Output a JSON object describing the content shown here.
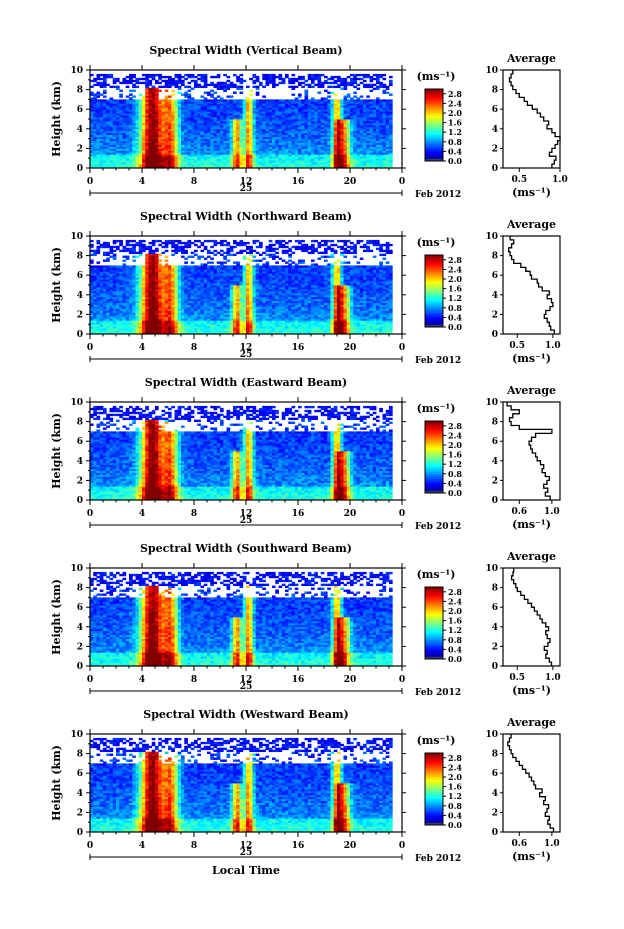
{
  "chart_data": [
    {
      "type": "heatmap",
      "title": "Spectral Width (Vertical Beam)",
      "ylabel": "Height (km)",
      "xlim": [
        0,
        24
      ],
      "ylim": [
        0,
        10
      ],
      "x_ticks": [
        "0",
        "4",
        "8",
        "12",
        "16",
        "20",
        "0"
      ],
      "y_ticks": [
        "0",
        "2",
        "4",
        "6",
        "8",
        "10"
      ],
      "date_label": "25",
      "month_label": "Feb 2012",
      "colorbar": {
        "unit": "(ms⁻¹)",
        "ticks": [
          "0.0",
          "0.4",
          "0.8",
          "1.2",
          "1.6",
          "2.0",
          "2.4",
          "2.8"
        ],
        "range": [
          0,
          3.0
        ]
      },
      "profile": {
        "title": "Average",
        "xlabel": "(ms⁻¹)",
        "xlim": [
          0.3,
          1.0
        ],
        "x_ticks": [
          "0.5",
          "1.0"
        ],
        "y_ticks": [
          "0",
          "2",
          "4",
          "6",
          "8",
          "10"
        ],
        "height": [
          0.2,
          0.6,
          1.0,
          1.4,
          1.8,
          2.2,
          2.6,
          3.0,
          3.4,
          3.8,
          4.2,
          4.6,
          5.0,
          5.4,
          5.8,
          6.2,
          6.6,
          7.0,
          7.4,
          7.8,
          8.2,
          8.6,
          9.0,
          9.4,
          9.8
        ],
        "values": [
          0.9,
          0.93,
          0.95,
          0.87,
          0.9,
          0.94,
          0.97,
          1.0,
          0.94,
          0.9,
          0.84,
          0.86,
          0.8,
          0.76,
          0.72,
          0.66,
          0.6,
          0.56,
          0.5,
          0.46,
          0.42,
          0.4,
          0.38,
          0.4,
          0.42
        ]
      }
    },
    {
      "type": "heatmap",
      "title": "Spectral Width (Northward Beam)",
      "ylabel": "Height (km)",
      "xlim": [
        0,
        24
      ],
      "ylim": [
        0,
        10
      ],
      "x_ticks": [
        "0",
        "4",
        "8",
        "12",
        "16",
        "20",
        "0"
      ],
      "y_ticks": [
        "0",
        "2",
        "4",
        "6",
        "8",
        "10"
      ],
      "date_label": "25",
      "month_label": "Feb 2012",
      "colorbar": {
        "unit": "(ms⁻¹)",
        "ticks": [
          "0.0",
          "0.4",
          "0.8",
          "1.2",
          "1.6",
          "2.0",
          "2.4",
          "2.8"
        ],
        "range": [
          0,
          3.0
        ]
      },
      "profile": {
        "title": "Average",
        "xlabel": "(ms⁻¹)",
        "xlim": [
          0.3,
          1.1
        ],
        "x_ticks": [
          "0.5",
          "1.0"
        ],
        "y_ticks": [
          "0",
          "2",
          "4",
          "6",
          "8",
          "10"
        ],
        "height": [
          0.2,
          0.6,
          1.0,
          1.4,
          1.8,
          2.2,
          2.6,
          3.0,
          3.4,
          3.8,
          4.2,
          4.6,
          5.0,
          5.4,
          5.8,
          6.2,
          6.6,
          7.0,
          7.4,
          7.8,
          8.2,
          8.6,
          9.0,
          9.4,
          9.8
        ],
        "values": [
          1.02,
          0.97,
          0.95,
          0.92,
          0.88,
          0.9,
          0.96,
          1.0,
          0.98,
          0.92,
          0.95,
          0.85,
          0.8,
          0.78,
          0.7,
          0.68,
          0.62,
          0.55,
          0.45,
          0.42,
          0.4,
          0.38,
          0.42,
          0.45,
          0.4
        ]
      }
    },
    {
      "type": "heatmap",
      "title": "Spectral Width (Eastward Beam)",
      "ylabel": "Height (km)",
      "xlim": [
        0,
        24
      ],
      "ylim": [
        0,
        10
      ],
      "x_ticks": [
        "0",
        "4",
        "8",
        "12",
        "16",
        "20",
        "0"
      ],
      "y_ticks": [
        "0",
        "2",
        "4",
        "6",
        "8",
        "10"
      ],
      "date_label": "25",
      "month_label": "Feb 2012",
      "colorbar": {
        "unit": "(ms⁻¹)",
        "ticks": [
          "0.0",
          "0.4",
          "0.8",
          "1.2",
          "1.6",
          "2.0",
          "2.4",
          "2.8"
        ],
        "range": [
          0,
          3.0
        ]
      },
      "profile": {
        "title": "Average",
        "xlabel": "(ms⁻¹)",
        "xlim": [
          0.4,
          1.1
        ],
        "x_ticks": [
          "0.6",
          "1.0"
        ],
        "y_ticks": [
          "0",
          "2",
          "4",
          "6",
          "8",
          "10"
        ],
        "height": [
          0.2,
          0.6,
          1.0,
          1.4,
          1.8,
          2.2,
          2.6,
          3.0,
          3.4,
          3.8,
          4.2,
          4.6,
          5.0,
          5.4,
          5.8,
          6.2,
          6.6,
          7.0,
          7.4,
          7.8,
          8.2,
          8.6,
          9.0,
          9.4,
          9.8
        ],
        "values": [
          0.98,
          0.92,
          0.95,
          0.9,
          0.94,
          0.97,
          0.92,
          0.88,
          0.9,
          0.86,
          0.82,
          0.8,
          0.76,
          0.74,
          0.72,
          0.75,
          0.8,
          1.0,
          0.6,
          0.5,
          0.48,
          0.52,
          0.6,
          0.5,
          0.45
        ]
      }
    },
    {
      "type": "heatmap",
      "title": "Spectral Width (Southward Beam)",
      "ylabel": "Height (km)",
      "xlim": [
        0,
        24
      ],
      "ylim": [
        0,
        10
      ],
      "x_ticks": [
        "0",
        "4",
        "8",
        "12",
        "16",
        "20",
        "0"
      ],
      "y_ticks": [
        "0",
        "2",
        "4",
        "6",
        "8",
        "10"
      ],
      "date_label": "25",
      "month_label": "Feb 2012",
      "colorbar": {
        "unit": "(ms⁻¹)",
        "ticks": [
          "0.0",
          "0.4",
          "0.8",
          "1.2",
          "1.6",
          "2.0",
          "2.4",
          "2.8"
        ],
        "range": [
          0,
          3.0
        ]
      },
      "profile": {
        "title": "Average",
        "xlabel": "(ms⁻¹)",
        "xlim": [
          0.3,
          1.1
        ],
        "x_ticks": [
          "0.5",
          "1.0"
        ],
        "y_ticks": [
          "0",
          "2",
          "4",
          "6",
          "8",
          "10"
        ],
        "height": [
          0.2,
          0.6,
          1.0,
          1.4,
          1.8,
          2.2,
          2.6,
          3.0,
          3.4,
          3.8,
          4.2,
          4.6,
          5.0,
          5.4,
          5.8,
          6.2,
          6.6,
          7.0,
          7.4,
          7.8,
          8.2,
          8.6,
          9.0,
          9.4,
          9.8
        ],
        "values": [
          0.98,
          0.95,
          0.9,
          0.92,
          0.88,
          0.93,
          0.96,
          0.92,
          0.9,
          0.94,
          0.9,
          0.85,
          0.82,
          0.78,
          0.74,
          0.7,
          0.65,
          0.6,
          0.55,
          0.5,
          0.48,
          0.45,
          0.42,
          0.44,
          0.45
        ]
      }
    },
    {
      "type": "heatmap",
      "title": "Spectral Width (Westward Beam)",
      "ylabel": "Height (km)",
      "xlabel": "Local Time",
      "xlim": [
        0,
        24
      ],
      "ylim": [
        0,
        10
      ],
      "x_ticks": [
        "0",
        "4",
        "8",
        "12",
        "16",
        "20",
        "0"
      ],
      "y_ticks": [
        "0",
        "2",
        "4",
        "6",
        "8",
        "10"
      ],
      "date_label": "25",
      "month_label": "Feb 2012",
      "colorbar": {
        "unit": "(ms⁻¹)",
        "ticks": [
          "0.0",
          "0.4",
          "0.8",
          "1.2",
          "1.6",
          "2.0",
          "2.4",
          "2.8"
        ],
        "range": [
          0,
          3.0
        ]
      },
      "profile": {
        "title": "Average",
        "xlabel": "(ms⁻¹)",
        "xlim": [
          0.4,
          1.1
        ],
        "x_ticks": [
          "0.6",
          "1.0"
        ],
        "y_ticks": [
          "0",
          "2",
          "4",
          "6",
          "8",
          "10"
        ],
        "height": [
          0.2,
          0.6,
          1.0,
          1.4,
          1.8,
          2.2,
          2.6,
          3.0,
          3.4,
          3.8,
          4.2,
          4.6,
          5.0,
          5.4,
          5.8,
          6.2,
          6.6,
          7.0,
          7.4,
          7.8,
          8.2,
          8.6,
          9.0,
          9.4,
          9.8
        ],
        "values": [
          1.02,
          0.98,
          0.95,
          0.97,
          0.92,
          0.94,
          0.96,
          0.9,
          0.92,
          0.85,
          0.88,
          0.8,
          0.78,
          0.75,
          0.72,
          0.68,
          0.64,
          0.6,
          0.56,
          0.52,
          0.5,
          0.48,
          0.46,
          0.48,
          0.5
        ]
      }
    }
  ]
}
